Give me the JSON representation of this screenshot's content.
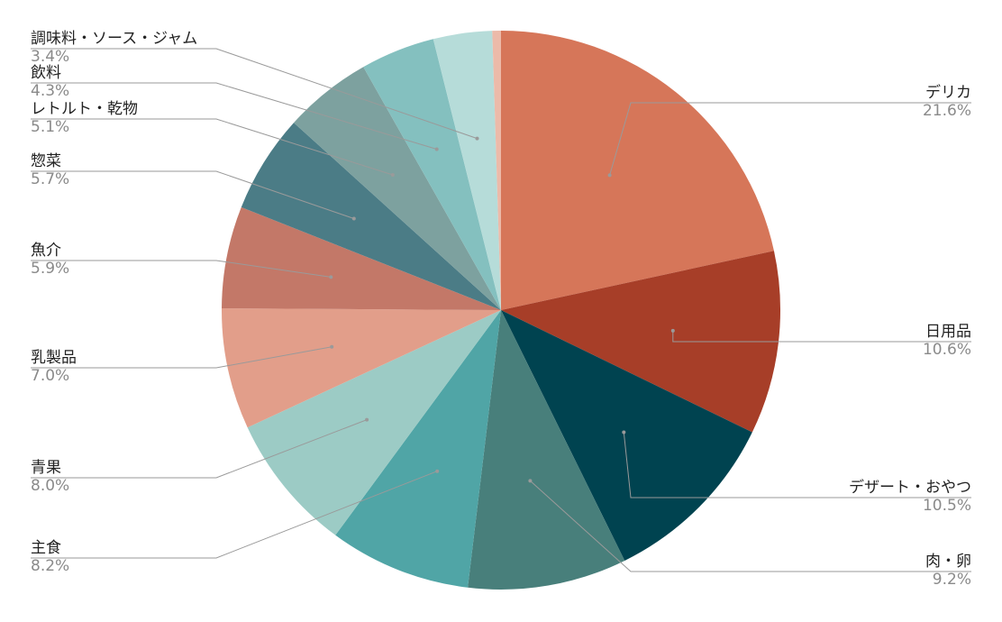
{
  "chart_data": {
    "type": "pie",
    "title": "",
    "start_angle_deg": 0,
    "direction": "clockwise",
    "slices": [
      {
        "label": "デリカ",
        "value": 21.6,
        "display": "21.6%",
        "color": "#D67659",
        "side": "right"
      },
      {
        "label": "日用品",
        "value": 10.6,
        "display": "10.6%",
        "color": "#A73E28",
        "side": "right"
      },
      {
        "label": "デザート・おやつ",
        "value": 10.5,
        "display": "10.5%",
        "color": "#004350",
        "side": "right"
      },
      {
        "label": "肉・卵",
        "value": 9.2,
        "display": "9.2%",
        "color": "#487F7B",
        "side": "right"
      },
      {
        "label": "主食",
        "value": 8.2,
        "display": "8.2%",
        "color": "#50A5A6",
        "side": "left"
      },
      {
        "label": "青果",
        "value": 8.0,
        "display": "8.0%",
        "color": "#9CCBC5",
        "side": "left"
      },
      {
        "label": "乳製品",
        "value": 7.0,
        "display": "7.0%",
        "color": "#E29E8A",
        "side": "left"
      },
      {
        "label": "魚介",
        "value": 5.9,
        "display": "5.9%",
        "color": "#C37868",
        "side": "left"
      },
      {
        "label": "惣菜",
        "value": 5.7,
        "display": "5.7%",
        "color": "#4B7C86",
        "side": "left"
      },
      {
        "label": "レトルト・乾物",
        "value": 5.1,
        "display": "5.1%",
        "color": "#7DA19F",
        "side": "left"
      },
      {
        "label": "飲料",
        "value": 4.3,
        "display": "4.3%",
        "color": "#84C0BF",
        "side": "left"
      },
      {
        "label": "調味料・ソース・ジャム",
        "value": 3.4,
        "display": "3.4%",
        "color": "#B6DCD9",
        "side": "left"
      },
      {
        "label": "",
        "value": 0.5,
        "display": "",
        "color": "#ECBAA9",
        "side": "none"
      }
    ]
  }
}
